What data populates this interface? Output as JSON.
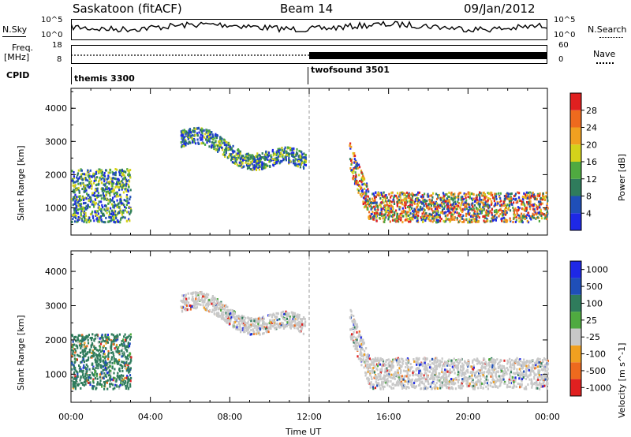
{
  "header": {
    "station": "Saskatoon (fitACF)",
    "beam": "Beam 14",
    "date": "09/Jan/2012"
  },
  "top_panels": {
    "sky_label": "N.Sky",
    "search_label": "N.Search",
    "noise_ticks": [
      "10^5",
      "10^0"
    ],
    "freq_label": "Freq.",
    "freq_unit": "[MHz]",
    "freq_ticks": [
      "18",
      "8"
    ],
    "nave_label": "Nave",
    "nave_ticks": [
      "60",
      "0"
    ],
    "cpid_label": "CPID",
    "cpid_segments": [
      {
        "name": "themis 3300",
        "start": 0.0,
        "end": 12.0
      },
      {
        "name": "twofsound 3501",
        "start": 12.0,
        "end": 24.0
      }
    ]
  },
  "x_axis": {
    "label": "Time UT",
    "ticks": [
      "00:00",
      "04:00",
      "08:00",
      "12:00",
      "16:00",
      "20:00",
      "00:00"
    ],
    "range_hours": [
      0,
      24
    ]
  },
  "chart_data": [
    {
      "type": "heatmap",
      "title": "Power",
      "ylabel": "Slant Range [km]",
      "ylim": [
        180,
        4600
      ],
      "yticks": [
        "1000",
        "2000",
        "3000",
        "4000"
      ],
      "colorbar": {
        "label": "Power [dB]",
        "ticks": [
          "4",
          "8",
          "12",
          "16",
          "20",
          "24",
          "28"
        ],
        "colors": [
          "#1e28e6",
          "#1f4fb8",
          "#2f7c5c",
          "#4faa40",
          "#d4d21a",
          "#f0a020",
          "#ee6a1e",
          "#e02020"
        ]
      },
      "regions": [
        {
          "name": "early-scatter",
          "t": [
            0.0,
            3.0
          ],
          "range_km": [
            600,
            2200
          ],
          "level": "medium"
        },
        {
          "name": "evening-arc",
          "t": [
            5.5,
            11.8
          ],
          "range_km": [
            2000,
            3300
          ],
          "level": "medium"
        },
        {
          "name": "night-band",
          "t": [
            14.0,
            24.0
          ],
          "range_km": [
            500,
            1500
          ],
          "level": "high"
        }
      ]
    },
    {
      "type": "heatmap",
      "title": "Velocity",
      "ylabel": "Slant Range [km]",
      "ylim": [
        180,
        4600
      ],
      "yticks": [
        "1000",
        "2000",
        "3000",
        "4000"
      ],
      "colorbar": {
        "label": "Velocity [m s^-1]",
        "ticks": [
          "1000",
          "500",
          "100",
          "25",
          "-25",
          "-100",
          "-500",
          "-1000"
        ],
        "colors": [
          "#1e28e6",
          "#1f4fb8",
          "#2f7c5c",
          "#4faa40",
          "#c8c8c8",
          "#f0a020",
          "#ee6a1e",
          "#e02020"
        ]
      },
      "regions": [
        {
          "name": "early-scatter",
          "t": [
            0.0,
            3.0
          ],
          "range_km": [
            600,
            2200
          ],
          "level": "toward"
        },
        {
          "name": "evening-arc",
          "t": [
            5.5,
            11.8
          ],
          "range_km": [
            2000,
            3300
          ],
          "level": "near-zero"
        },
        {
          "name": "night-band",
          "t": [
            14.0,
            24.0
          ],
          "range_km": [
            500,
            1500
          ],
          "level": "near-zero"
        }
      ]
    }
  ]
}
